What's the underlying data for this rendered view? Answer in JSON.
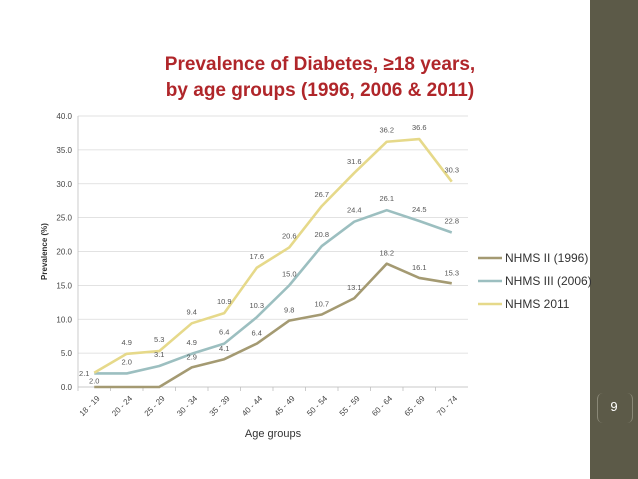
{
  "slide": {
    "page_number": "9"
  },
  "chart_data": {
    "type": "line",
    "title_line1": "Prevalence of Diabetes, ≥18 years,",
    "title_line2": "by age groups (1996, 2006 & 2011)",
    "xlabel": "Age groups",
    "ylabel": "Prevalence (%)",
    "ylim": [
      0,
      40
    ],
    "yticks": [
      "0.0",
      "5.0",
      "10.0",
      "15.0",
      "20.0",
      "25.0",
      "30.0",
      "35.0",
      "40.0"
    ],
    "categories": [
      "18 - 19",
      "20 - 24",
      "25 - 29",
      "30 - 34",
      "35 - 39",
      "40 - 44",
      "45 - 49",
      "50 - 54",
      "55 - 59",
      "60 - 64",
      "65 - 69",
      "70 - 74"
    ],
    "grid": true,
    "legend_position": "right",
    "series": [
      {
        "name": "NHMS II (1996)",
        "color": "#a49a72",
        "values": [
          0,
          0,
          0,
          2.9,
          4.1,
          6.4,
          9.8,
          10.7,
          13.1,
          18.2,
          16.1,
          15.3
        ],
        "labels": [
          "",
          "",
          "",
          "2.9",
          "4.1",
          "6.4",
          "9.8",
          "10.7",
          "13.1",
          "18.2",
          "16.1",
          "15.3"
        ]
      },
      {
        "name": "NHMS III (2006)",
        "color": "#9cbfc0",
        "values": [
          2.0,
          2.0,
          3.1,
          4.9,
          6.4,
          10.3,
          15.0,
          20.8,
          24.4,
          26.1,
          24.5,
          22.8
        ],
        "labels": [
          "2.0",
          "2.0",
          "3.1",
          "4.9",
          "6.4",
          "10.3",
          "15.0",
          "20.8",
          "24.4",
          "26.1",
          "24.5",
          "22.8"
        ]
      },
      {
        "name": "NHMS 2011",
        "color": "#e6d98a",
        "values": [
          2.1,
          4.9,
          5.3,
          9.4,
          10.9,
          17.6,
          20.6,
          26.7,
          31.6,
          36.2,
          36.6,
          30.3
        ],
        "labels": [
          "2.1",
          "4.9",
          "5.3",
          "9.4",
          "10.9",
          "17.6",
          "20.6",
          "26.7",
          "31.6",
          "36.2",
          "36.6",
          "30.3"
        ]
      }
    ]
  }
}
